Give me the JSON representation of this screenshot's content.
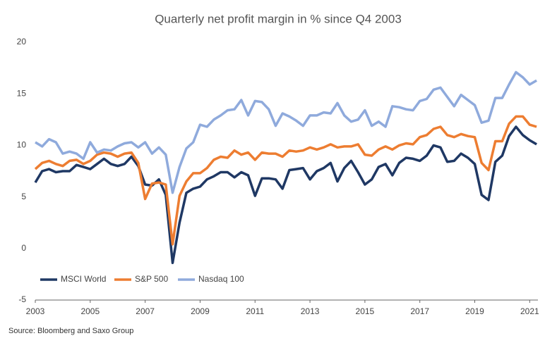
{
  "chart_data": {
    "type": "line",
    "title": "Quarterly net profit margin in % since Q4 2003",
    "source": "Source: Bloomberg and Saxo Group",
    "x": [
      2003,
      2003.25,
      2003.5,
      2003.75,
      2004,
      2004.25,
      2004.5,
      2004.75,
      2005,
      2005.25,
      2005.5,
      2005.75,
      2006,
      2006.25,
      2006.5,
      2006.75,
      2007,
      2007.25,
      2007.5,
      2007.75,
      2008,
      2008.25,
      2008.5,
      2008.75,
      2009,
      2009.25,
      2009.5,
      2009.75,
      2010,
      2010.25,
      2010.5,
      2010.75,
      2011,
      2011.25,
      2011.5,
      2011.75,
      2012,
      2012.25,
      2012.5,
      2012.75,
      2013,
      2013.25,
      2013.5,
      2013.75,
      2014,
      2014.25,
      2014.5,
      2014.75,
      2015,
      2015.25,
      2015.5,
      2015.75,
      2016,
      2016.25,
      2016.5,
      2016.75,
      2017,
      2017.25,
      2017.5,
      2017.75,
      2018,
      2018.25,
      2018.5,
      2018.75,
      2019,
      2019.25,
      2019.5,
      2019.75,
      2020,
      2020.25,
      2020.5,
      2020.75,
      2021,
      2021.25
    ],
    "series": [
      {
        "name": "MSCI World",
        "color": "#1f3864",
        "values": [
          6.4,
          7.5,
          7.7,
          7.4,
          7.5,
          7.5,
          8.1,
          7.9,
          7.7,
          8.2,
          8.7,
          8.2,
          8.0,
          8.2,
          8.9,
          8.0,
          6.2,
          6.1,
          6.7,
          5.2,
          -1.4,
          2.5,
          5.4,
          5.8,
          6.0,
          6.7,
          7.0,
          7.4,
          7.4,
          6.9,
          7.4,
          7.1,
          5.1,
          6.8,
          6.8,
          6.7,
          5.8,
          7.6,
          7.7,
          7.8,
          6.7,
          7.5,
          7.8,
          8.3,
          6.5,
          7.8,
          8.5,
          7.4,
          6.2,
          6.7,
          7.9,
          8.2,
          7.1,
          8.3,
          8.8,
          8.7,
          8.5,
          9.0,
          10.0,
          9.8,
          8.4,
          8.5,
          9.2,
          8.8,
          8.2,
          5.2,
          4.7,
          8.4,
          9.0,
          10.9,
          11.8,
          11.0,
          10.5,
          10.1
        ]
      },
      {
        "name": "S&P 500",
        "color": "#ed7d31",
        "values": [
          7.7,
          8.3,
          8.5,
          8.2,
          8.0,
          8.5,
          8.6,
          8.2,
          8.5,
          9.1,
          9.3,
          9.2,
          8.9,
          9.2,
          9.3,
          8.3,
          4.8,
          6.3,
          6.4,
          6.2,
          0.4,
          5.1,
          6.5,
          7.3,
          7.3,
          7.8,
          8.6,
          8.9,
          8.8,
          9.5,
          9.1,
          9.3,
          8.6,
          9.3,
          9.2,
          9.2,
          8.9,
          9.5,
          9.4,
          9.5,
          9.8,
          9.6,
          9.8,
          10.1,
          9.8,
          9.9,
          9.9,
          10.1,
          9.1,
          9.0,
          9.6,
          9.9,
          9.6,
          10.0,
          10.2,
          10.1,
          10.8,
          11.0,
          11.6,
          11.8,
          11.0,
          10.8,
          11.1,
          10.9,
          10.8,
          8.3,
          7.6,
          10.4,
          10.4,
          12.1,
          12.8,
          12.8,
          12.0,
          11.8
        ]
      },
      {
        "name": "Nasdaq 100",
        "color": "#8faadc",
        "values": [
          10.3,
          9.9,
          10.6,
          10.3,
          9.2,
          9.4,
          9.2,
          8.7,
          10.3,
          9.3,
          9.6,
          9.5,
          9.9,
          10.2,
          10.3,
          9.8,
          10.3,
          9.2,
          9.8,
          9.1,
          5.4,
          7.9,
          9.7,
          10.3,
          12.0,
          11.8,
          12.5,
          12.9,
          13.4,
          13.5,
          14.4,
          12.9,
          14.3,
          14.2,
          13.5,
          11.9,
          13.1,
          12.8,
          12.4,
          11.9,
          12.9,
          12.9,
          13.2,
          13.1,
          14.1,
          12.9,
          12.3,
          12.5,
          13.4,
          11.9,
          12.3,
          11.8,
          13.8,
          13.7,
          13.5,
          13.4,
          14.3,
          14.5,
          15.4,
          15.6,
          14.7,
          13.8,
          14.9,
          14.4,
          13.9,
          12.2,
          12.4,
          14.6,
          14.6,
          15.9,
          17.1,
          16.6,
          15.9,
          16.3
        ]
      }
    ],
    "xlim": [
      2003,
      2021.3
    ],
    "xticks": [
      2003,
      2005,
      2007,
      2009,
      2011,
      2013,
      2015,
      2017,
      2019,
      2021
    ],
    "ylim": [
      -5,
      20
    ],
    "yticks": [
      -5,
      0,
      5,
      10,
      15,
      20
    ],
    "grid": false,
    "legend": "lower left"
  }
}
